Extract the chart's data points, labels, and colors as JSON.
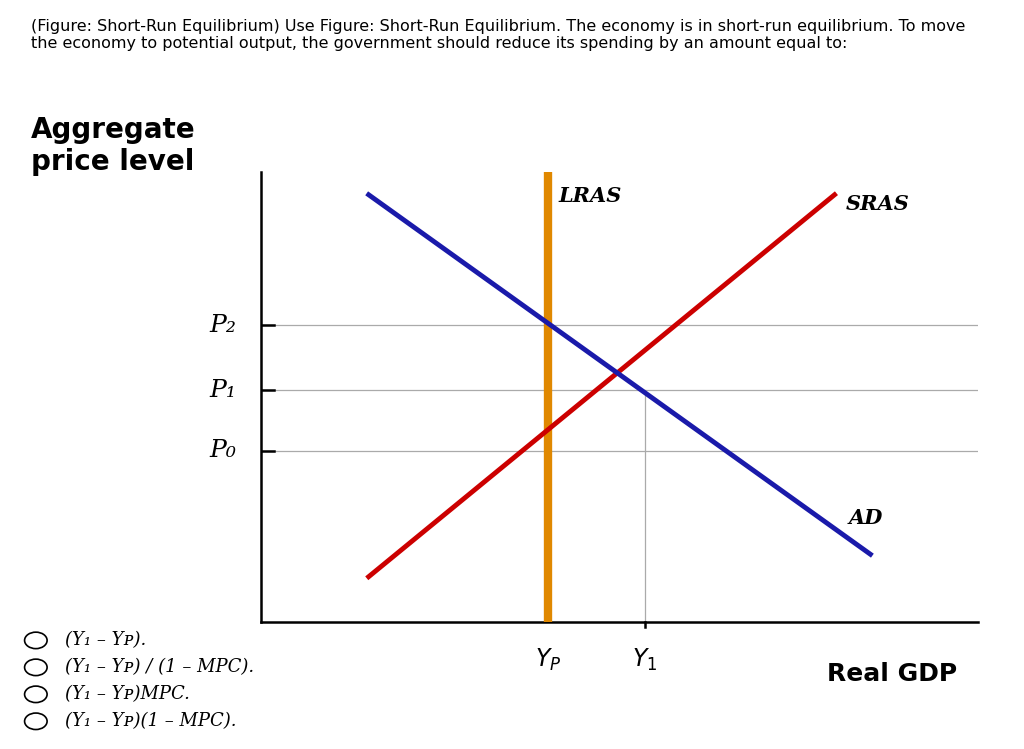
{
  "background_color": "#ffffff",
  "chart_bg": "#ffffff",
  "title_text": "(Figure: Short-Run Equilibrium) Use Figure: Short-Run Equilibrium. The economy is in short-run equilibrium. To move\nthe economy to potential output, the government should reduce its spending by an amount equal to:",
  "title_fontsize": 11.5,
  "ylabel": "Aggregate\nprice level",
  "ylabel_fontsize": 20,
  "ylabel_fontweight": "bold",
  "xlabel": "Real GDP",
  "xlabel_fontsize": 18,
  "xlabel_fontweight": "bold",
  "xlim": [
    0,
    10
  ],
  "ylim": [
    0,
    10
  ],
  "lras_x": 4.0,
  "lras_color": "#E08800",
  "lras_linewidth": 6,
  "lras_label": "LRAS",
  "sras_x1": 1.5,
  "sras_y1": 1.0,
  "sras_x2": 8.0,
  "sras_y2": 9.5,
  "sras_color": "#CC0000",
  "sras_linewidth": 3.5,
  "sras_label": "SRAS",
  "ad_x1": 1.5,
  "ad_y1": 9.5,
  "ad_x2": 8.5,
  "ad_y2": 1.5,
  "ad_color": "#1a1aaa",
  "ad_linewidth": 3.5,
  "ad_label": "AD",
  "p0_y": 3.8,
  "p1_y": 5.15,
  "p2_y": 6.6,
  "lras_x_pos": 4.0,
  "y1_x": 5.35,
  "p0_label": "P₀",
  "p1_label": "P₁",
  "p2_label": "P₂",
  "p_label_fontsize": 18,
  "y_label_fontsize": 17,
  "choices": [
    "(Y₁ – Yᴘ).",
    "(Y₁ – Yᴘ) / (1 – MPC).",
    "(Y₁ – Yᴘ)MPC.",
    "(Y₁ – Yᴘ)(1 – MPC)."
  ],
  "choices_fontsize": 13
}
